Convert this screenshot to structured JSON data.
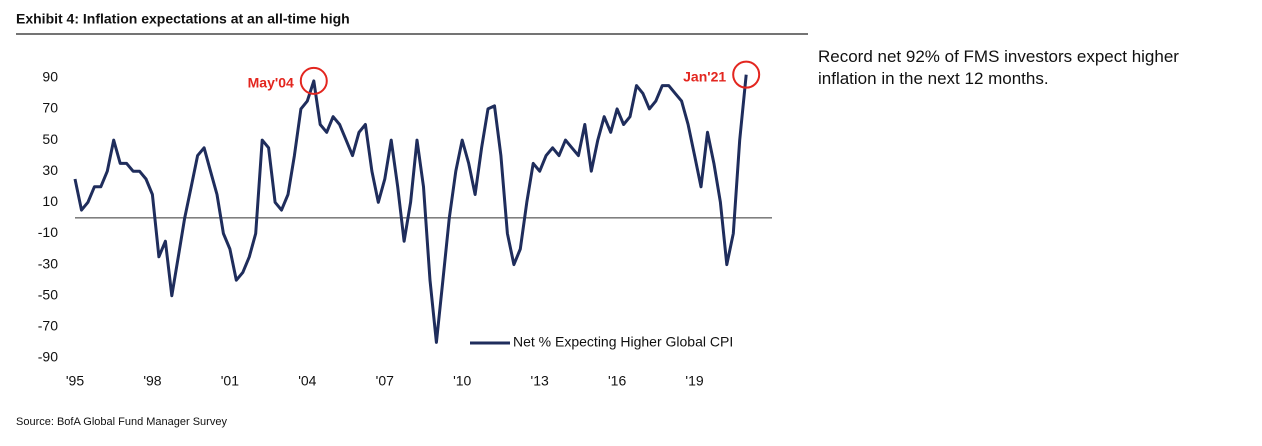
{
  "chart_data": {
    "type": "line",
    "title": "Exhibit 4: Inflation expectations at an all-time high",
    "source": "Source: BofA Global Fund Manager Survey",
    "note": "Record net 92% of FMS investors expect higher inflation in the next 12 months.",
    "annotations": [
      "May'04",
      "Jan'21"
    ],
    "x": [
      1995,
      1995.25,
      1995.5,
      1995.75,
      1996,
      1996.25,
      1996.5,
      1996.75,
      1997,
      1997.25,
      1997.5,
      1997.75,
      1998,
      1998.25,
      1998.5,
      1998.75,
      1999,
      1999.25,
      1999.5,
      1999.75,
      2000,
      2000.25,
      2000.5,
      2000.75,
      2001,
      2001.25,
      2001.5,
      2001.75,
      2002,
      2002.25,
      2002.5,
      2002.75,
      2003,
      2003.25,
      2003.5,
      2003.75,
      2004,
      2004.25,
      2004.5,
      2004.75,
      2005,
      2005.25,
      2005.5,
      2005.75,
      2006,
      2006.25,
      2006.5,
      2006.75,
      2007,
      2007.25,
      2007.5,
      2007.75,
      2008,
      2008.25,
      2008.5,
      2008.75,
      2009,
      2009.25,
      2009.5,
      2009.75,
      2010,
      2010.25,
      2010.5,
      2010.75,
      2011,
      2011.25,
      2011.5,
      2011.75,
      2012,
      2012.25,
      2012.5,
      2012.75,
      2013,
      2013.25,
      2013.5,
      2013.75,
      2014,
      2014.25,
      2014.5,
      2014.75,
      2015,
      2015.25,
      2015.5,
      2015.75,
      2016,
      2016.25,
      2016.5,
      2016.75,
      2017,
      2017.25,
      2017.5,
      2017.75,
      2018,
      2018.25,
      2018.5,
      2018.75,
      2019,
      2019.25,
      2019.5,
      2019.75,
      2020,
      2020.25,
      2020.5,
      2020.75,
      2021
    ],
    "series": [
      {
        "name": "Net % Expecting Higher Global CPI",
        "color": "#1f2d5c",
        "values": [
          25,
          5,
          10,
          20,
          20,
          30,
          50,
          35,
          35,
          30,
          30,
          25,
          15,
          -25,
          -15,
          -50,
          -25,
          0,
          20,
          40,
          45,
          30,
          15,
          -10,
          -20,
          -40,
          -35,
          -25,
          -10,
          50,
          45,
          10,
          5,
          15,
          40,
          70,
          75,
          88,
          60,
          55,
          65,
          60,
          50,
          40,
          55,
          60,
          30,
          10,
          25,
          50,
          20,
          -15,
          10,
          50,
          20,
          -40,
          -80,
          -40,
          0,
          30,
          50,
          35,
          15,
          45,
          70,
          72,
          40,
          -10,
          -30,
          -20,
          10,
          35,
          30,
          40,
          45,
          40,
          50,
          45,
          40,
          60,
          30,
          50,
          65,
          55,
          70,
          60,
          65,
          85,
          80,
          70,
          75,
          85,
          85,
          80,
          75,
          60,
          40,
          20,
          55,
          35,
          10,
          -30,
          -10,
          50,
          92
        ]
      }
    ],
    "xlim": [
      1995,
      2022
    ],
    "xticks": [
      {
        "value": 1995,
        "label": "'95"
      },
      {
        "value": 1998,
        "label": "'98"
      },
      {
        "value": 2001,
        "label": "'01"
      },
      {
        "value": 2004,
        "label": "'04"
      },
      {
        "value": 2007,
        "label": "'07"
      },
      {
        "value": 2010,
        "label": "'10"
      },
      {
        "value": 2013,
        "label": "'13"
      },
      {
        "value": 2016,
        "label": "'16"
      },
      {
        "value": 2019,
        "label": "'19"
      }
    ],
    "ylim": [
      -90,
      95
    ],
    "yticks": [
      90,
      70,
      50,
      30,
      10,
      -10,
      -30,
      -50,
      -70,
      -90
    ],
    "legend": "lower right"
  }
}
